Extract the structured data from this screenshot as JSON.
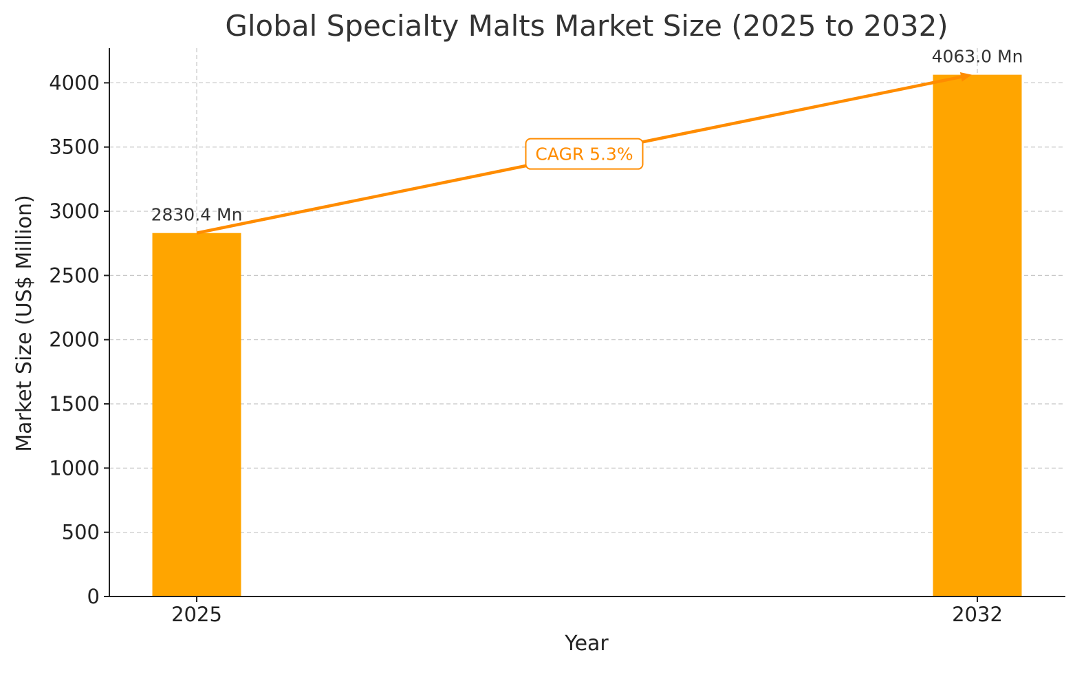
{
  "chart_data": {
    "type": "bar",
    "title": "Global Specialty Malts Market Size (2025 to 2032)",
    "xlabel": "Year",
    "ylabel": "Market Size (US$ Million)",
    "categories": [
      "2025",
      "2032"
    ],
    "values": [
      2830.4,
      4063.0
    ],
    "data_labels": [
      "2830.4 Mn",
      "4063.0 Mn"
    ],
    "ylim": [
      0,
      4270
    ],
    "yticks": [
      0,
      500,
      1000,
      1500,
      2000,
      2500,
      3000,
      3500,
      4000
    ],
    "grid": true,
    "bar_color": "#FFA500",
    "annotation": {
      "text": "CAGR 5.3%",
      "color": "#FF8C00",
      "from_category": "2025",
      "to_category": "2032"
    }
  }
}
